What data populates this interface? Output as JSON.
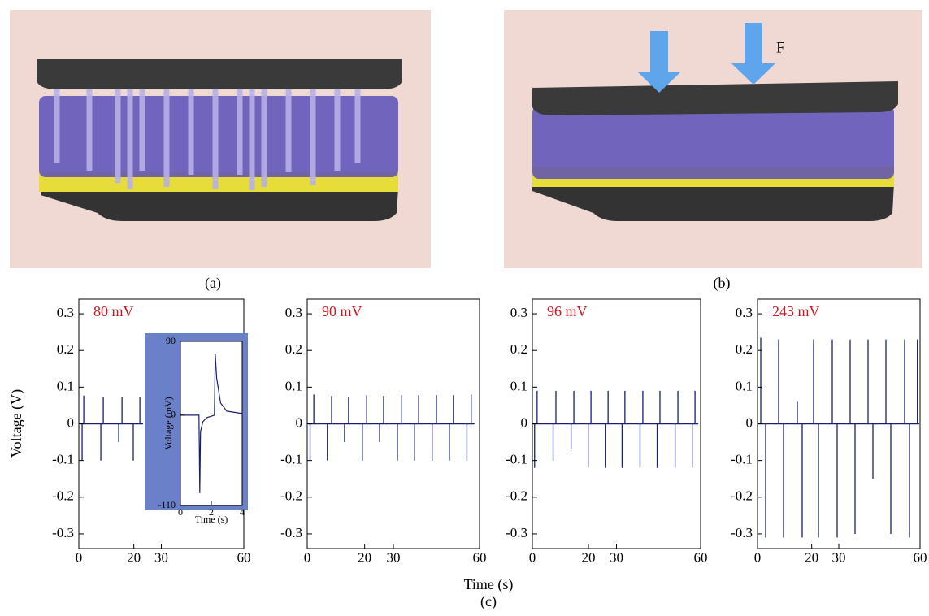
{
  "figure": {
    "panel_labels": [
      "(a)",
      "(b)",
      "(c)"
    ],
    "force_label": "F",
    "x_axis_label": "Time (s)",
    "y_axis_label": "Voltage (V)"
  },
  "chart_data": [
    {
      "type": "spike",
      "annotation": "80 mV",
      "xlim": [
        0,
        60
      ],
      "ylim": [
        -0.34,
        0.34
      ],
      "xticks": [
        0,
        20,
        30,
        60
      ],
      "yticks": [
        0.3,
        0.2,
        0.1,
        0,
        -0.1,
        -0.2,
        -0.3
      ],
      "series": [
        {
          "color": "#1a1f6e",
          "x": [
            1.8,
            8.9,
            15.7,
            22.2
          ],
          "values": [
            0.077,
            0.074,
            0.074,
            0.074
          ]
        },
        {
          "color": "#1a1f6e",
          "x": [
            1.2,
            8.0,
            14.5,
            19.8
          ],
          "values": [
            -0.1,
            -0.1,
            -0.05,
            -0.1
          ]
        }
      ]
    },
    {
      "type": "spike",
      "annotation": "90 mV",
      "xlim": [
        0,
        60
      ],
      "ylim": [
        -0.34,
        0.34
      ],
      "xticks": [
        0,
        20,
        30,
        60
      ],
      "yticks": [
        0.3,
        0.2,
        0.1,
        0,
        -0.1,
        -0.2,
        -0.3
      ],
      "series": [
        {
          "color": "#1a1f6e",
          "x": [
            2.3,
            8.5,
            14.4,
            20.7,
            26.6,
            32.9,
            38.8,
            45.0,
            50.9,
            57.1
          ],
          "values": [
            0.08,
            0.076,
            0.074,
            0.078,
            0.076,
            0.078,
            0.078,
            0.078,
            0.078,
            0.08
          ]
        },
        {
          "color": "#1a1f6e",
          "x": [
            1.0,
            7.0,
            13.0,
            19.2,
            25.2,
            31.4,
            37.4,
            43.5,
            49.5,
            55.6
          ],
          "values": [
            -0.1,
            -0.1,
            -0.05,
            -0.1,
            -0.05,
            -0.1,
            -0.1,
            -0.1,
            -0.1,
            -0.1
          ]
        }
      ]
    },
    {
      "type": "spike",
      "annotation": "96 mV",
      "xlim": [
        0,
        60
      ],
      "ylim": [
        -0.34,
        0.34
      ],
      "xticks": [
        0,
        20,
        30,
        60
      ],
      "yticks": [
        0.3,
        0.2,
        0.1,
        0,
        -0.1,
        -0.2,
        -0.3
      ],
      "series": [
        {
          "color": "#1a1f6e",
          "x": [
            1.7,
            8.4,
            14.8,
            20.9,
            27.0,
            33.0,
            39.4,
            45.5,
            51.9,
            58.0
          ],
          "values": [
            0.09,
            0.09,
            0.09,
            0.09,
            0.09,
            0.09,
            0.09,
            0.09,
            0.09,
            0.09
          ]
        },
        {
          "color": "#1a1f6e",
          "x": [
            0.8,
            7.4,
            13.8,
            19.9,
            26.0,
            32.0,
            38.4,
            44.5,
            50.9,
            57.0
          ],
          "values": [
            -0.12,
            -0.1,
            -0.07,
            -0.12,
            -0.12,
            -0.12,
            -0.12,
            -0.12,
            -0.12,
            -0.12
          ]
        }
      ]
    },
    {
      "type": "spike",
      "annotation": "243 mV",
      "xlim": [
        0,
        60
      ],
      "ylim": [
        -0.34,
        0.34
      ],
      "xticks": [
        0,
        20,
        30,
        60
      ],
      "yticks": [
        0.3,
        0.2,
        0.1,
        0,
        -0.1,
        -0.2,
        -0.3
      ],
      "series": [
        {
          "color": "#1a1f6e",
          "x": [
            1.2,
            7.8,
            14.7,
            20.7,
            27.6,
            34.2,
            40.8,
            47.4,
            54.3,
            59.0
          ],
          "values": [
            0.235,
            0.23,
            0.06,
            0.23,
            0.23,
            0.23,
            0.23,
            0.23,
            0.23,
            0.23
          ]
        },
        {
          "color": "#1a1f6e",
          "x": [
            3.0,
            9.6,
            16.5,
            22.5,
            29.4,
            36.0,
            42.6,
            49.2,
            56.1
          ],
          "values": [
            -0.31,
            -0.31,
            -0.31,
            -0.31,
            -0.31,
            -0.3,
            -0.15,
            -0.3,
            -0.31
          ]
        }
      ]
    },
    {
      "type": "line",
      "xlabel": "Time (s)",
      "ylabel": "Voltage (mV)",
      "xlim": [
        0,
        4
      ],
      "ylim": [
        -110,
        90
      ],
      "xticks": [
        0,
        2,
        4
      ],
      "yticks": [
        90,
        0,
        -110
      ],
      "series": [
        {
          "color": "#1a1f6e",
          "x": [
            0,
            1.2,
            1.25,
            1.3,
            1.45,
            1.7,
            2.2,
            2.25,
            2.35,
            2.6,
            3.0,
            4.0
          ],
          "values": [
            0,
            0,
            -95,
            -20,
            -8,
            -3,
            0,
            75,
            45,
            15,
            5,
            2
          ]
        }
      ]
    }
  ]
}
